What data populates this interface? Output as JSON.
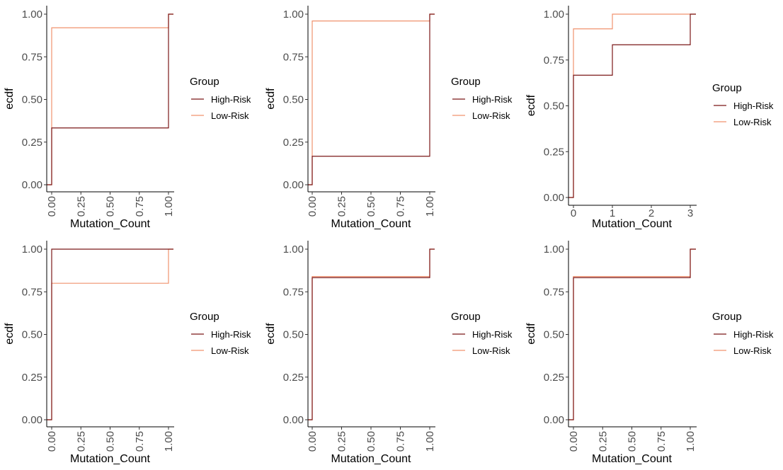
{
  "colors": {
    "high_risk": "#7b1818",
    "low_risk": "#f0926e",
    "axis": "#000000",
    "tick_text": "#4d4d4d"
  },
  "chart_data": [
    {
      "type": "line",
      "step": true,
      "xlabel": "Mutation_Count",
      "ylabel": "ecdf",
      "x_ticks": [
        "0.00",
        "0.25",
        "0.50",
        "0.75",
        "1.00"
      ],
      "x_ticks_vertical": true,
      "y_ticks": [
        "0.00",
        "0.25",
        "0.50",
        "0.75",
        "1.00"
      ],
      "xlim": [
        0,
        1
      ],
      "ylim": [
        0,
        1
      ],
      "grid": false,
      "legend": {
        "title": "Group",
        "position": "right",
        "entries": [
          "High-Risk",
          "Low-Risk"
        ]
      },
      "series": [
        {
          "name": "High-Risk",
          "x": [
            0,
            1
          ],
          "y": [
            0.333,
            1.0
          ]
        },
        {
          "name": "Low-Risk",
          "x": [
            0,
            1
          ],
          "y": [
            0.92,
            1.0
          ]
        }
      ]
    },
    {
      "type": "line",
      "step": true,
      "xlabel": "Mutation_Count",
      "ylabel": "ecdf",
      "x_ticks": [
        "0.00",
        "0.25",
        "0.50",
        "0.75",
        "1.00"
      ],
      "x_ticks_vertical": true,
      "y_ticks": [
        "0.00",
        "0.25",
        "0.50",
        "0.75",
        "1.00"
      ],
      "xlim": [
        0,
        1
      ],
      "ylim": [
        0,
        1
      ],
      "grid": false,
      "legend": {
        "title": "Group",
        "position": "right",
        "entries": [
          "High-Risk",
          "Low-Risk"
        ]
      },
      "series": [
        {
          "name": "High-Risk",
          "x": [
            0,
            1
          ],
          "y": [
            0.167,
            1.0
          ]
        },
        {
          "name": "Low-Risk",
          "x": [
            0,
            1
          ],
          "y": [
            0.96,
            1.0
          ]
        }
      ]
    },
    {
      "type": "line",
      "step": true,
      "xlabel": "Mutation_Count",
      "ylabel": "ecdf",
      "x_ticks": [
        "0",
        "1",
        "2",
        "3"
      ],
      "x_ticks_vertical": false,
      "y_ticks": [
        "0.00",
        "0.25",
        "0.50",
        "0.75",
        "1.00"
      ],
      "xlim": [
        0,
        3
      ],
      "ylim": [
        0,
        1
      ],
      "grid": false,
      "legend": {
        "title": "Group",
        "position": "right",
        "entries": [
          "High-Risk",
          "Low-Risk"
        ]
      },
      "series": [
        {
          "name": "High-Risk",
          "x": [
            0,
            1,
            3
          ],
          "y": [
            0.667,
            0.833,
            1.0
          ]
        },
        {
          "name": "Low-Risk",
          "x": [
            0,
            1
          ],
          "y": [
            0.92,
            1.0
          ]
        }
      ]
    },
    {
      "type": "line",
      "step": true,
      "xlabel": "Mutation_Count",
      "ylabel": "ecdf",
      "x_ticks": [
        "0.00",
        "0.25",
        "0.50",
        "0.75",
        "1.00"
      ],
      "x_ticks_vertical": true,
      "y_ticks": [
        "0.00",
        "0.25",
        "0.50",
        "0.75",
        "1.00"
      ],
      "xlim": [
        0,
        1
      ],
      "ylim": [
        0,
        1
      ],
      "grid": false,
      "legend": {
        "title": "Group",
        "position": "right",
        "entries": [
          "High-Risk",
          "Low-Risk"
        ]
      },
      "series": [
        {
          "name": "High-Risk",
          "x": [
            0
          ],
          "y": [
            1.0
          ]
        },
        {
          "name": "Low-Risk",
          "x": [
            0,
            1
          ],
          "y": [
            0.8,
            1.0
          ]
        }
      ]
    },
    {
      "type": "line",
      "step": true,
      "xlabel": "Mutation_Count",
      "ylabel": "ecdf",
      "x_ticks": [
        "0.00",
        "0.25",
        "0.50",
        "0.75",
        "1.00"
      ],
      "x_ticks_vertical": true,
      "y_ticks": [
        "0.00",
        "0.25",
        "0.50",
        "0.75",
        "1.00"
      ],
      "xlim": [
        0,
        1
      ],
      "ylim": [
        0,
        1
      ],
      "grid": false,
      "legend": {
        "title": "Group",
        "position": "right",
        "entries": [
          "High-Risk",
          "Low-Risk"
        ]
      },
      "series": [
        {
          "name": "High-Risk",
          "x": [
            0,
            1
          ],
          "y": [
            0.833,
            1.0
          ]
        },
        {
          "name": "Low-Risk",
          "x": [
            0,
            1
          ],
          "y": [
            0.84,
            1.0
          ]
        }
      ]
    },
    {
      "type": "line",
      "step": true,
      "xlabel": "Mutation_Count",
      "ylabel": "ecdf",
      "x_ticks": [
        "0.00",
        "0.25",
        "0.50",
        "0.75",
        "1.00"
      ],
      "x_ticks_vertical": true,
      "y_ticks": [
        "0.00",
        "0.25",
        "0.50",
        "0.75",
        "1.00"
      ],
      "xlim": [
        0,
        1
      ],
      "ylim": [
        0,
        1
      ],
      "grid": false,
      "legend": {
        "title": "Group",
        "position": "right",
        "entries": [
          "High-Risk",
          "Low-Risk"
        ]
      },
      "series": [
        {
          "name": "High-Risk",
          "x": [
            0,
            1
          ],
          "y": [
            0.833,
            1.0
          ]
        },
        {
          "name": "Low-Risk",
          "x": [
            0,
            1
          ],
          "y": [
            0.84,
            1.0
          ]
        }
      ]
    }
  ]
}
